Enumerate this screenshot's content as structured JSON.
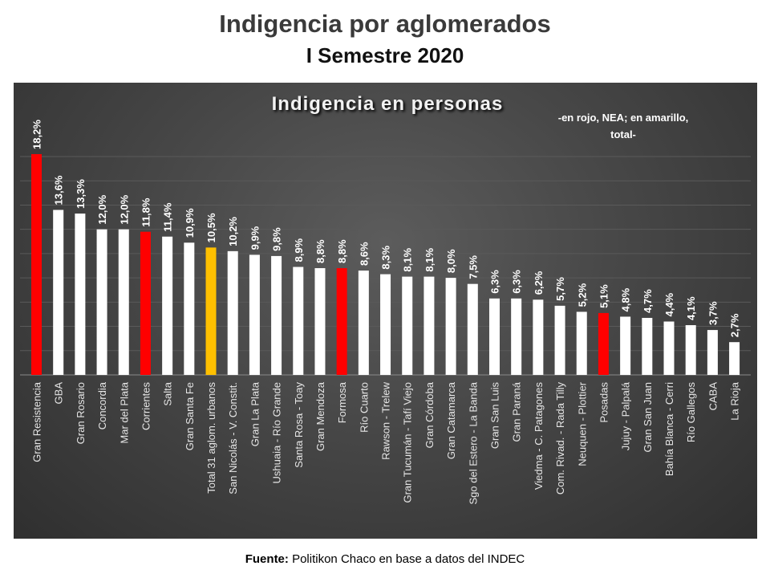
{
  "title": "Indigencia por aglomerados",
  "subtitle": "I Semestre 2020",
  "source": {
    "label": "Fuente:",
    "text": "Politikon Chaco en base a datos del INDEC"
  },
  "colors": {
    "nea": "#ff0000",
    "total": "#ffc000",
    "other": "#ffffff"
  },
  "chart_data": {
    "type": "bar",
    "title": "Indigencia  en  personas",
    "annotation": "-en rojo, NEA; en amarillo, total-",
    "grid": true,
    "ylim": [
      0,
      18.5
    ],
    "categories": [
      "Gran Resistencia",
      "GBA",
      "Gran Rosario",
      "Concordia",
      "Mar del Plata",
      "Corrientes",
      "Salta",
      "Gran Santa Fe",
      "Total 31 aglom. urbanos",
      "San Nicolás - V. Constit.",
      "Gran La Plata",
      "Ushuaia - Río Grande",
      "Santa Rosa - Toay",
      "Gran Mendoza",
      "Formosa",
      "Río Cuarto",
      "Rawson - Trelew",
      "Gran Tucumán - Tafí Viejo",
      "Gran Córdoba",
      "Gran Catamarca",
      "Sgo del Estero - La Banda",
      "Gran San Luis",
      "Gran Paraná",
      "Viedma - C. Patagones",
      "Com. Rivad. - Rada Tilly",
      "Neuquen - Plottier",
      "Posadas",
      "Jujuy - Palpalá",
      "Gran San Juan",
      "Bahía Blanca - Cerri",
      "Río Gallegos",
      "CABA",
      "La Rioja"
    ],
    "values": [
      18.2,
      13.6,
      13.3,
      12.0,
      12.0,
      11.8,
      11.4,
      10.9,
      10.5,
      10.2,
      9.9,
      9.8,
      8.9,
      8.8,
      8.8,
      8.6,
      8.3,
      8.1,
      8.1,
      8.0,
      7.5,
      6.3,
      6.3,
      6.2,
      5.7,
      5.2,
      5.1,
      4.8,
      4.7,
      4.4,
      4.1,
      3.7,
      2.7
    ],
    "labels": [
      "18,2%",
      "13,6%",
      "13,3%",
      "12,0%",
      "12,0%",
      "11,8%",
      "11,4%",
      "10,9%",
      "10,5%",
      "10,2%",
      "9,9%",
      "9,8%",
      "8,9%",
      "8,8%",
      "8,8%",
      "8,6%",
      "8,3%",
      "8,1%",
      "8,1%",
      "8,0%",
      "7,5%",
      "6,3%",
      "6,3%",
      "6,2%",
      "5,7%",
      "5,2%",
      "5,1%",
      "4,8%",
      "4,7%",
      "4,4%",
      "4,1%",
      "3,7%",
      "2,7%"
    ],
    "groups": [
      "nea",
      "other",
      "other",
      "other",
      "other",
      "nea",
      "other",
      "other",
      "total",
      "other",
      "other",
      "other",
      "other",
      "other",
      "nea",
      "other",
      "other",
      "other",
      "other",
      "other",
      "other",
      "other",
      "other",
      "other",
      "other",
      "other",
      "nea",
      "other",
      "other",
      "other",
      "other",
      "other",
      "other"
    ]
  }
}
